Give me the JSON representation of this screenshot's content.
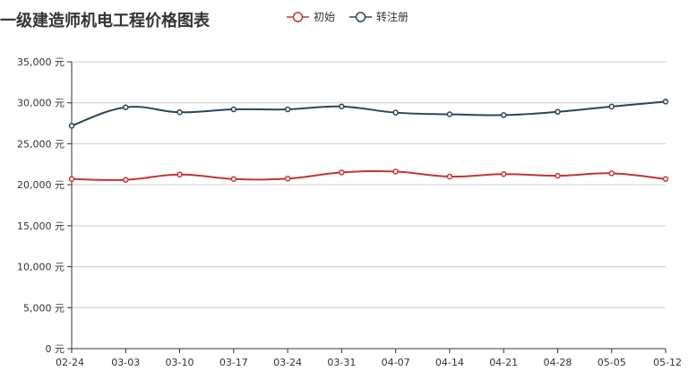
{
  "chart_data": {
    "type": "line",
    "title": "一级建造师机电工程价格图表",
    "categories": [
      "02-24",
      "03-03",
      "03-10",
      "03-17",
      "03-24",
      "03-31",
      "04-07",
      "04-14",
      "04-21",
      "04-28",
      "05-05",
      "05-12"
    ],
    "series": [
      {
        "name": "初始",
        "color": "#c23531",
        "values": [
          20700,
          20600,
          21250,
          20700,
          20750,
          21500,
          21600,
          21000,
          21300,
          21100,
          21400,
          20700
        ]
      },
      {
        "name": "转注册",
        "color": "#2f4554",
        "values": [
          27200,
          29450,
          28850,
          29200,
          29200,
          29550,
          28800,
          28600,
          28500,
          28900,
          29550,
          30150
        ]
      }
    ],
    "ylim": [
      0,
      35000
    ],
    "yticks": [
      0,
      5000,
      10000,
      15000,
      20000,
      25000,
      30000,
      35000
    ],
    "ytick_labels": [
      "0 元",
      "5,000 元",
      "10,000 元",
      "15,000 元",
      "20,000 元",
      "25,000 元",
      "30,000 元",
      "35,000 元"
    ],
    "xlabel": "",
    "ylabel": "",
    "grid": true,
    "legend_position": "top-center",
    "smooth": true
  }
}
